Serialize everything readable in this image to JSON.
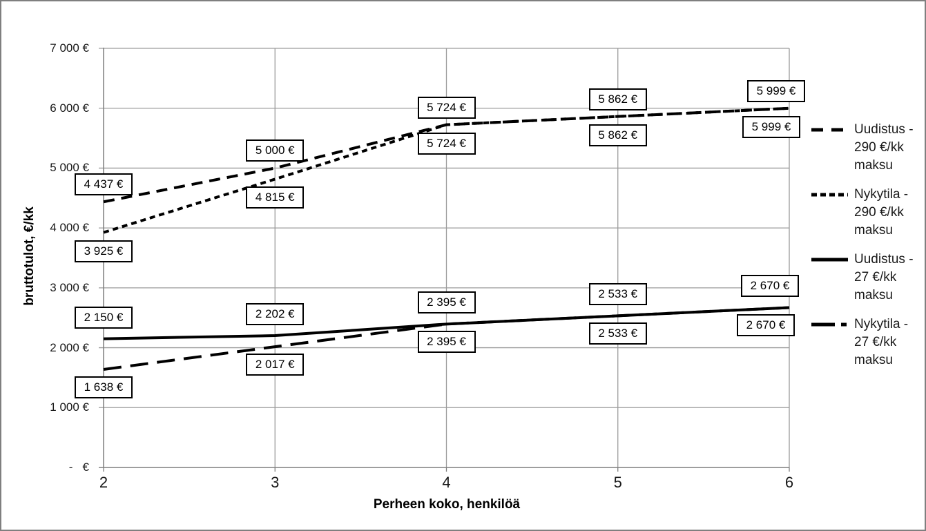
{
  "window": {
    "border_color": "#7f7f7f",
    "background": "#ffffff"
  },
  "colors": {
    "series_line": "#000000",
    "gridline": "#9c9c9c",
    "axis_line": "#7f7f7f",
    "label_box_border": "#000000",
    "label_box_fill": "#ffffff",
    "text": "#000000"
  },
  "chart_data": {
    "type": "line",
    "title": "",
    "xlabel": "Perheen koko, henkilöä",
    "ylabel": "bruttotulot, €/kk",
    "x": [
      2,
      3,
      4,
      5,
      6
    ],
    "x_tick_labels": [
      "2",
      "3",
      "4",
      "5",
      "6"
    ],
    "ylim": [
      0,
      7000
    ],
    "ytick_interval": 1000,
    "y_tick_labels": [
      "-   €",
      "1 000 €",
      "2 000 €",
      "3 000 €",
      "4 000 €",
      "5 000 €",
      "6 000 €",
      "7 000 €"
    ],
    "grid": true,
    "legend_position": "right",
    "series": [
      {
        "name": "Uudistus - 290 €/kk maksu",
        "line_style": "dashed-long",
        "values": [
          4437,
          5000,
          5724,
          5862,
          5999
        ],
        "point_labels": [
          "4 437 €",
          "5 000 €",
          "5 724 €",
          "5 862 €",
          "5 999 €"
        ],
        "labels_side": "above"
      },
      {
        "name": "Nykytila - 290 €/kk maksu",
        "line_style": "dashed-short",
        "values": [
          3925,
          4815,
          5724,
          5862,
          5999
        ],
        "point_labels": [
          "3 925 €",
          "4 815 €",
          "5 724 €",
          "5 862 €",
          "5 999 €"
        ],
        "labels_side": "below"
      },
      {
        "name": "Uudistus - 27 €/kk maksu",
        "line_style": "solid",
        "values": [
          2150,
          2202,
          2395,
          2533,
          2670
        ],
        "point_labels": [
          "2 150 €",
          "2 202 €",
          "2 395 €",
          "2 533 €",
          "2 670 €"
        ],
        "labels_side": "above"
      },
      {
        "name": "Nykytila - 27 €/kk maksu",
        "line_style": "dashed-longer",
        "values": [
          1638,
          2017,
          2395,
          2533,
          2670
        ],
        "point_labels": [
          "1 638 €",
          "2 017 €",
          "2 395 €",
          "2 533 €",
          "2 670 €"
        ],
        "labels_side": "below"
      }
    ]
  }
}
